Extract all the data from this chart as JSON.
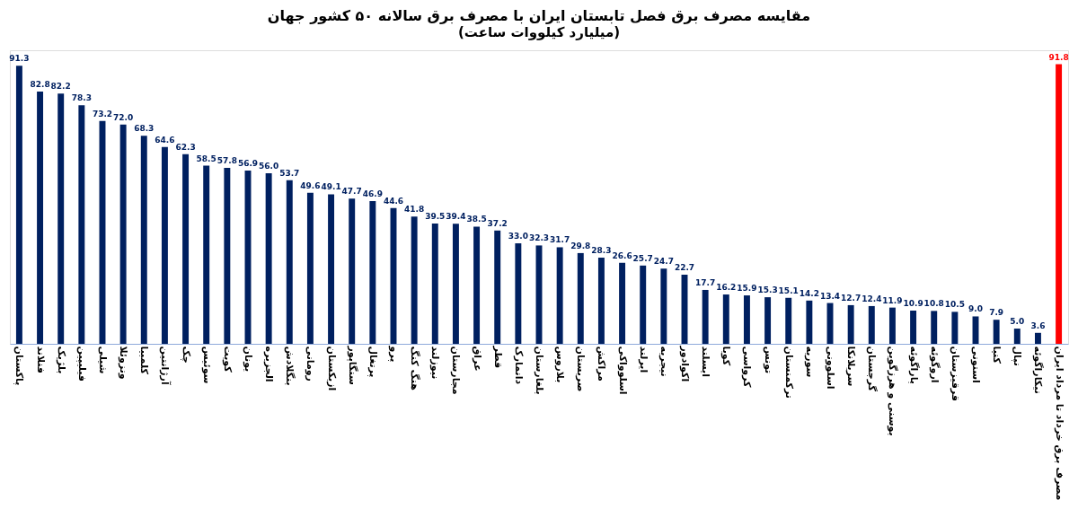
{
  "chart_data": {
    "type": "bar",
    "title": "مقایسه مصرف برق فصل تابستان ایران با مصرف برق سالانه ۵۰ کشور جهان",
    "subtitle": "(میلیارد کیلووات ساعت)",
    "categories": [
      "پاکستان",
      "فنلاند",
      "بلژیک",
      "فیلیپین",
      "شیلی",
      "ونزوئلا",
      "کلمبیا",
      "آرژانتین",
      "چک",
      "سوئیس",
      "کویت",
      "یونان",
      "الجزیره",
      "بنگلادش",
      "رومانی",
      "ازبکستان",
      "سنگاپور",
      "پرتغال",
      "پرو",
      "هنگ کنگ",
      "نیوزلند",
      "مجارستان",
      "عراق",
      "قطر",
      "دانمارک",
      "بلغارستان",
      "بلاروس",
      "صربستان",
      "مراکش",
      "اسلوواکی",
      "ایرلند",
      "نیجریه",
      "اکوادور",
      "ایسلند",
      "کوبا",
      "کرواسی",
      "تونس",
      "ترکمنستان",
      "سوریه",
      "اسلوونی",
      "سریلانکا",
      "گرجستان",
      "بوسنی و هرزگوین",
      "پاراگوئه",
      "اروگوئه",
      "قرقیزستان",
      "استونی",
      "کنیا",
      "نپال",
      "نیکاراگوئه",
      "مصرف برق خرداد تا مرداد ایران"
    ],
    "values": [
      91.3,
      82.8,
      82.2,
      78.3,
      73.2,
      72.0,
      68.3,
      64.6,
      62.3,
      58.5,
      57.8,
      56.9,
      56.0,
      53.7,
      49.6,
      49.1,
      47.7,
      46.9,
      44.6,
      41.8,
      39.5,
      39.4,
      38.5,
      37.2,
      33.0,
      32.3,
      31.7,
      29.8,
      28.3,
      26.6,
      25.7,
      24.7,
      22.7,
      17.7,
      16.2,
      15.9,
      15.3,
      15.1,
      14.2,
      13.4,
      12.7,
      12.4,
      11.9,
      10.9,
      10.8,
      10.5,
      9.0,
      7.9,
      5.0,
      3.6,
      91.8
    ],
    "colors": [
      "#002060",
      "#002060",
      "#002060",
      "#002060",
      "#002060",
      "#002060",
      "#002060",
      "#002060",
      "#002060",
      "#002060",
      "#002060",
      "#002060",
      "#002060",
      "#002060",
      "#002060",
      "#002060",
      "#002060",
      "#002060",
      "#002060",
      "#002060",
      "#002060",
      "#002060",
      "#002060",
      "#002060",
      "#002060",
      "#002060",
      "#002060",
      "#002060",
      "#002060",
      "#002060",
      "#002060",
      "#002060",
      "#002060",
      "#002060",
      "#002060",
      "#002060",
      "#002060",
      "#002060",
      "#002060",
      "#002060",
      "#002060",
      "#002060",
      "#002060",
      "#002060",
      "#002060",
      "#002060",
      "#002060",
      "#002060",
      "#002060",
      "#002060",
      "#ff0000"
    ],
    "value_labels": [
      "91.3",
      "82.8",
      "82.2",
      "78.3",
      "73.2",
      "72.0",
      "68.3",
      "64.6",
      "62.3",
      "58.5",
      "57.8",
      "56.9",
      "56.0",
      "53.7",
      "49.6",
      "49.1",
      "47.7",
      "46.9",
      "44.6",
      "41.8",
      "39.5",
      "39.4",
      "38.5",
      "37.2",
      "33.0",
      "32.3",
      "31.7",
      "29.8",
      "28.3",
      "26.6",
      "25.7",
      "24.7",
      "22.7",
      "17.7",
      "16.2",
      "15.9",
      "15.3",
      "15.1",
      "14.2",
      "13.4",
      "12.7",
      "12.4",
      "11.9",
      "10.9",
      "10.8",
      "10.5",
      "9.0",
      "7.9",
      "5.0",
      "3.6",
      "91.8"
    ]
  }
}
